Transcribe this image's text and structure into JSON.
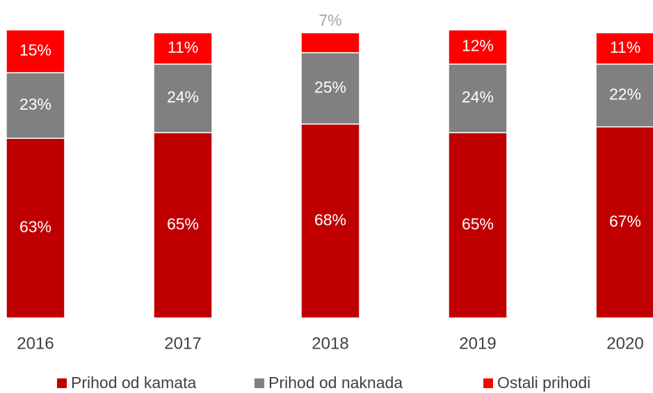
{
  "chart_data": {
    "type": "bar",
    "stacked": true,
    "categories": [
      "2016",
      "2017",
      "2018",
      "2019",
      "2020"
    ],
    "ylim": [
      0,
      101
    ],
    "series": [
      {
        "name": "Prihod od kamata",
        "color": "#c00000",
        "values": [
          63,
          65,
          68,
          65,
          67
        ],
        "value_labels": [
          "63%",
          "65%",
          "68%",
          "65%",
          "67%"
        ]
      },
      {
        "name": "Prihod od naknada",
        "color": "#808080",
        "values": [
          23,
          24,
          25,
          24,
          22
        ],
        "value_labels": [
          "23%",
          "24%",
          "25%",
          "24%",
          "22%"
        ]
      },
      {
        "name": "Ostali prihodi",
        "color": "#ff0000",
        "values": [
          15,
          11,
          7,
          12,
          11
        ],
        "value_labels": [
          "15%",
          "11%",
          "7%",
          "12%",
          "11%"
        ]
      }
    ],
    "legend": "bottom"
  }
}
